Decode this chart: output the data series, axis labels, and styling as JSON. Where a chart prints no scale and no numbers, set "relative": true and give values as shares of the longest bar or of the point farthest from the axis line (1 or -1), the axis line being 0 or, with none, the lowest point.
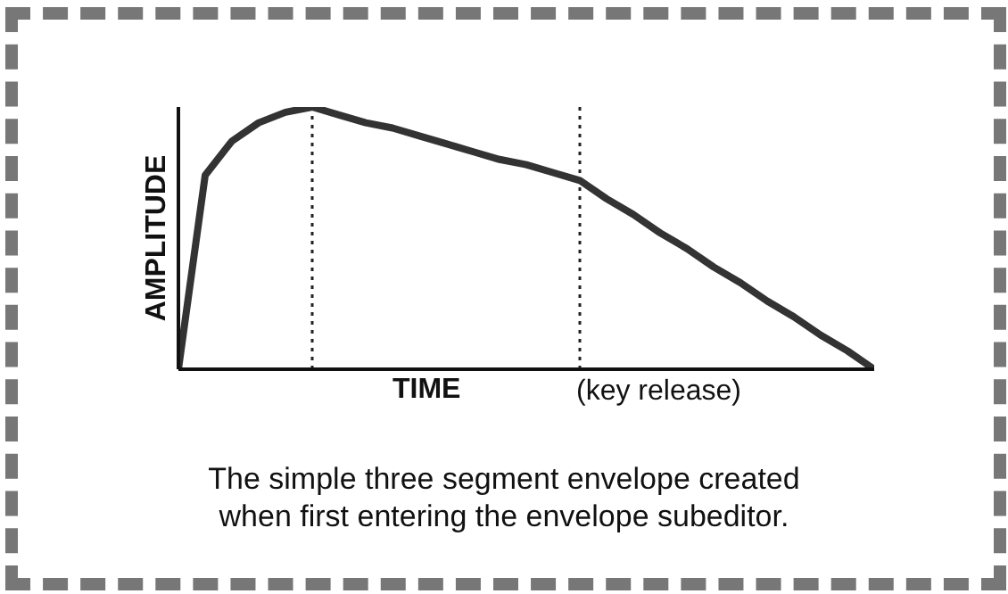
{
  "chart_data": {
    "type": "line",
    "relative": true,
    "xlabel": "TIME",
    "ylabel": "AMPLITUDE",
    "categories": [
      null,
      null,
      null,
      null,
      null,
      null,
      null,
      null,
      null,
      null,
      null,
      null,
      null,
      null,
      null,
      null,
      null,
      null,
      null,
      null,
      null,
      null,
      null,
      null,
      null,
      null,
      null
    ],
    "series": [
      {
        "color": "#333333",
        "values": [
          0,
          0.74,
          0.87,
          0.94,
          0.98,
          1,
          0.97,
          0.94,
          0.92,
          0.89,
          0.86,
          0.83,
          0.8,
          0.78,
          0.75,
          0.72,
          0.65,
          0.59,
          0.52,
          0.46,
          0.39,
          0.33,
          0.26,
          0.2,
          0.13,
          0.07,
          0
        ]
      }
    ],
    "annotations": [
      "(key release)",
      "The simple three segment envelope created\nwhen first entering the envelope subeditor."
    ],
    "marker": "none",
    "line_style": "solid"
  }
}
